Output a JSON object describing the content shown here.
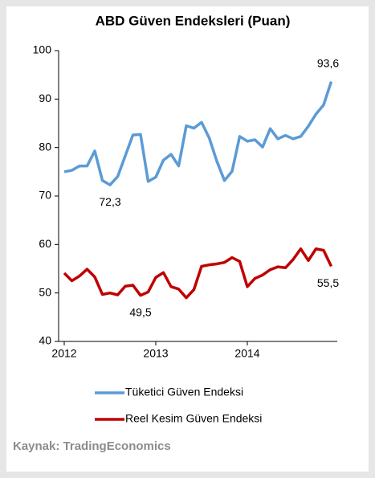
{
  "chart_data": {
    "type": "line",
    "title": "ABD Güven Endeksleri (Puan)",
    "source": "Kaynak: TradingEconomics",
    "categories": [
      "2012",
      null,
      null,
      null,
      null,
      null,
      null,
      null,
      null,
      null,
      null,
      null,
      "2013",
      null,
      null,
      null,
      null,
      null,
      null,
      null,
      null,
      null,
      null,
      null,
      "2014",
      null,
      null,
      null,
      null,
      null,
      null,
      null,
      null,
      null,
      null,
      null
    ],
    "series": [
      {
        "name": "Tüketici Güven Endeksi",
        "color": "#5b9bd5",
        "values": [
          75.0,
          75.3,
          76.2,
          76.2,
          79.3,
          73.2,
          72.3,
          74.0,
          78.3,
          82.6,
          82.7,
          73.0,
          73.9,
          77.4,
          78.6,
          76.2,
          84.5,
          84.0,
          85.2,
          82.0,
          77.2,
          73.2,
          75.1,
          82.3,
          81.3,
          81.6,
          80.1,
          83.9,
          81.8,
          82.5,
          81.8,
          82.3,
          84.4,
          86.9,
          88.8,
          93.6
        ],
        "value_labels": [
          null,
          null,
          null,
          null,
          null,
          null,
          "72,3",
          null,
          null,
          null,
          null,
          null,
          null,
          null,
          null,
          null,
          null,
          null,
          null,
          null,
          null,
          null,
          null,
          null,
          null,
          null,
          null,
          null,
          null,
          null,
          null,
          null,
          null,
          null,
          null,
          "93,6"
        ]
      },
      {
        "name": "Reel Kesim Güven Endeksi",
        "color": "#c00000",
        "values": [
          54.1,
          52.5,
          53.5,
          54.9,
          53.3,
          49.7,
          50.0,
          49.6,
          51.4,
          51.6,
          49.5,
          50.2,
          53.2,
          54.2,
          51.3,
          50.8,
          49.0,
          50.7,
          55.5,
          55.8,
          56.0,
          56.3,
          57.3,
          56.5,
          51.3,
          53.0,
          53.7,
          54.8,
          55.4,
          55.2,
          56.9,
          59.1,
          56.7,
          59.1,
          58.8,
          55.5
        ],
        "value_labels": [
          null,
          null,
          null,
          null,
          null,
          null,
          null,
          null,
          null,
          null,
          "49,5",
          null,
          null,
          null,
          null,
          null,
          null,
          null,
          null,
          null,
          null,
          null,
          null,
          null,
          null,
          null,
          null,
          null,
          null,
          null,
          null,
          null,
          null,
          null,
          null,
          "55,5"
        ]
      }
    ],
    "ylim": [
      40,
      100
    ],
    "yticks": [
      40,
      50,
      60,
      70,
      80,
      90,
      100
    ]
  }
}
